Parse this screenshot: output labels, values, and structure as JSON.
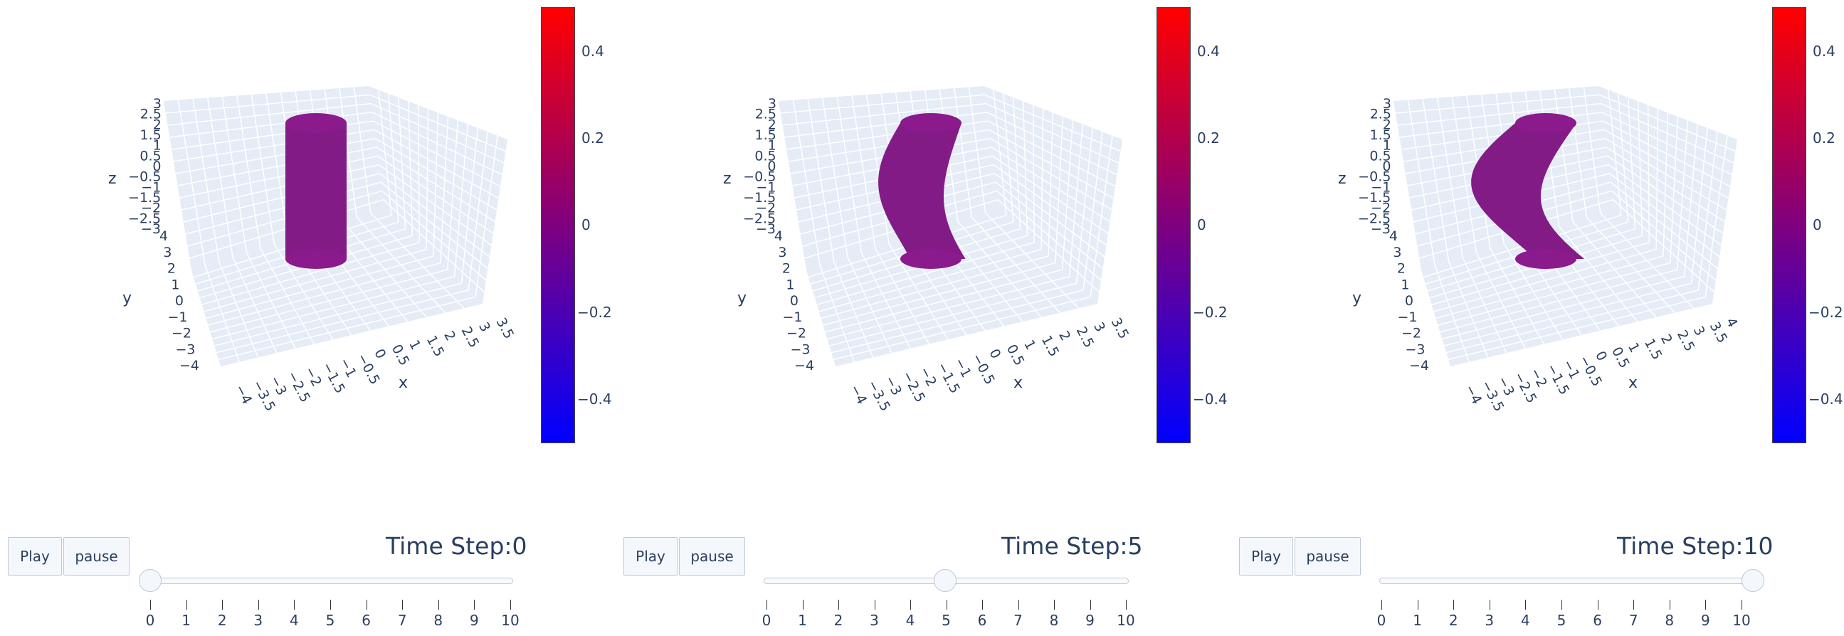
{
  "panels": [
    {
      "step": 0,
      "axes": {
        "x_title": "x",
        "y_title": "y",
        "z_title": "z",
        "z_ticks": [
          "3",
          "2.5",
          "2",
          "1.5",
          "1",
          "0.5",
          "0",
          "−0.5",
          "−1",
          "−1.5",
          "−2",
          "−2.5",
          "−3"
        ],
        "y_ticks": [
          "4",
          "3",
          "2",
          "1",
          "0",
          "−1",
          "−2",
          "−3",
          "−4"
        ],
        "x_ticks": [
          "−4",
          "−3.5",
          "−3",
          "−2.5",
          "−2",
          "−1.5",
          "−1",
          "−0.5",
          "0",
          "0.5",
          "1",
          "1.5",
          "2",
          "2.5",
          "3",
          "3.5"
        ]
      },
      "colorbar_ticks": [
        "0.4",
        "0.2",
        "0",
        "−0.2",
        "−0.4"
      ],
      "buttons": {
        "play": "Play",
        "pause": "pause"
      },
      "slider": {
        "label": "Time Step:0",
        "ticks": [
          "0",
          "1",
          "2",
          "3",
          "4",
          "5",
          "6",
          "7",
          "8",
          "9",
          "10"
        ],
        "value": 0
      }
    },
    {
      "step": 5,
      "axes": {
        "x_title": "x",
        "y_title": "y",
        "z_title": "z",
        "z_ticks": [
          "3",
          "2.5",
          "2",
          "1.5",
          "1",
          "0.5",
          "0",
          "−0.5",
          "−1",
          "−1.5",
          "−2",
          "−2.5",
          "−3"
        ],
        "y_ticks": [
          "4",
          "3",
          "2",
          "1",
          "0",
          "−1",
          "−2",
          "−3",
          "−4"
        ],
        "x_ticks": [
          "−4",
          "−3.5",
          "−3",
          "−2.5",
          "−2",
          "−1.5",
          "−1",
          "−0.5",
          "0",
          "0.5",
          "1",
          "1.5",
          "2",
          "2.5",
          "3",
          "3.5"
        ]
      },
      "colorbar_ticks": [
        "0.4",
        "0.2",
        "0",
        "−0.2",
        "−0.4"
      ],
      "buttons": {
        "play": "Play",
        "pause": "pause"
      },
      "slider": {
        "label": "Time Step:5",
        "ticks": [
          "0",
          "1",
          "2",
          "3",
          "4",
          "5",
          "6",
          "7",
          "8",
          "9",
          "10"
        ],
        "value": 5
      }
    },
    {
      "step": 10,
      "axes": {
        "x_title": "x",
        "y_title": "y",
        "z_title": "z",
        "z_ticks": [
          "3",
          "2.5",
          "2",
          "1.5",
          "1",
          "0.5",
          "0",
          "−0.5",
          "−1",
          "−1.5",
          "−2",
          "−2.5",
          "−3"
        ],
        "y_ticks": [
          "4",
          "3",
          "2",
          "1",
          "0",
          "−1",
          "−2",
          "−3",
          "−4"
        ],
        "x_ticks": [
          "−4",
          "−3.5",
          "−3",
          "−2.5",
          "−2",
          "−1.5",
          "−1",
          "−0.5",
          "0",
          "0.5",
          "1",
          "1.5",
          "2",
          "2.5",
          "3",
          "3.5",
          "4"
        ]
      },
      "colorbar_ticks": [
        "0.4",
        "0.2",
        "0",
        "−0.2",
        "−0.4"
      ],
      "buttons": {
        "play": "Play",
        "pause": "pause"
      },
      "slider": {
        "label": "Time Step:10",
        "ticks": [
          "0",
          "1",
          "2",
          "3",
          "4",
          "5",
          "6",
          "7",
          "8",
          "9",
          "10"
        ],
        "value": 10
      }
    }
  ],
  "colors": {
    "grid_plane": "#e5ecf6",
    "grid_line": "#ffffff",
    "surface": "#7d1080",
    "surface_top": "#8b1a8d",
    "text": "#2a3f5f"
  }
}
